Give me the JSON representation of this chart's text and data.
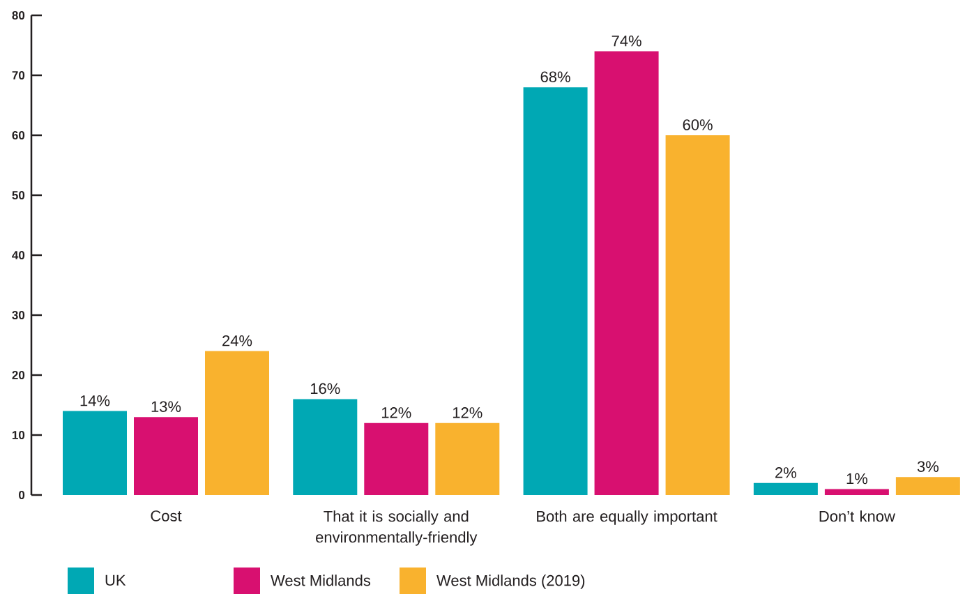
{
  "chart_data": {
    "type": "bar",
    "categories": [
      "Cost",
      "That it is socially and environmentally-friendly",
      "Both are equally important",
      "Don’t know"
    ],
    "series": [
      {
        "name": "UK",
        "color": "#00a8b4",
        "values": [
          14,
          16,
          68,
          2
        ],
        "value_labels": [
          "14%",
          "16%",
          "68%",
          "2%"
        ]
      },
      {
        "name": "West Midlands",
        "color": "#d81070",
        "values": [
          13,
          12,
          74,
          1
        ],
        "value_labels": [
          "13%",
          "12%",
          "74%",
          "1%"
        ]
      },
      {
        "name": "West Midlands (2019)",
        "color": "#f9b22e",
        "values": [
          24,
          12,
          60,
          3
        ],
        "value_labels": [
          "24%",
          "12%",
          "60%",
          "3%"
        ]
      }
    ],
    "ylim": [
      0,
      80
    ],
    "yticks": [
      0,
      10,
      20,
      30,
      40,
      50,
      60,
      70,
      80
    ],
    "legend": "bottom"
  }
}
